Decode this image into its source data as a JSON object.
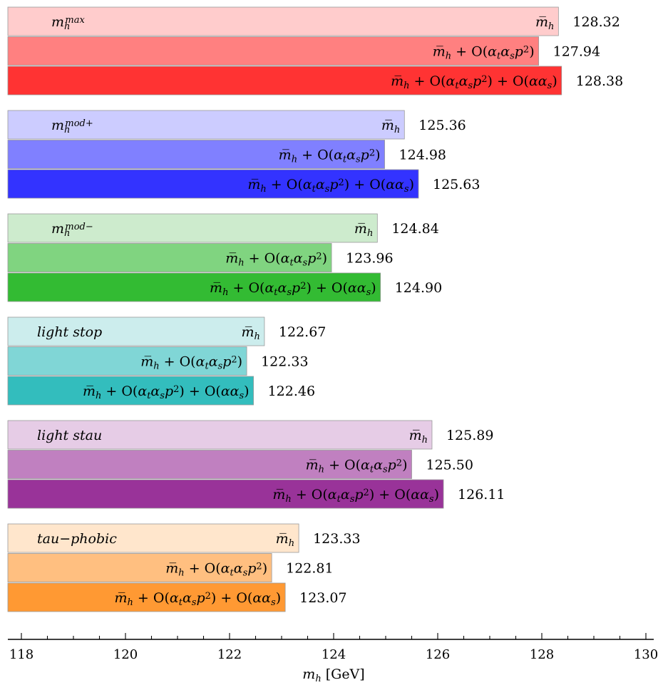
{
  "chart_data": {
    "type": "bar",
    "orientation": "horizontal",
    "xlabel": "m_h [GeV]",
    "xlim": [
      117.7,
      130.3
    ],
    "xticks": [
      118,
      120,
      122,
      124,
      126,
      128,
      130
    ],
    "minor_tick_step": 0.5,
    "grid": false,
    "legend": "none",
    "groups": [
      {
        "name": "m_h^max",
        "name_style": "math",
        "colors": [
          "#ffcccc",
          "#ff8080",
          "#ff3333"
        ],
        "bars": [
          {
            "label": "m̅_h",
            "value": 128.32
          },
          {
            "label": "m̅_h + O(α_tα_sp²)",
            "value": 127.94
          },
          {
            "label": "m̅_h + O(α_tα_sp²) + O(αα_s)",
            "value": 128.38
          }
        ]
      },
      {
        "name": "m_h^mod+",
        "name_style": "math",
        "colors": [
          "#ccccff",
          "#8080ff",
          "#3333ff"
        ],
        "bars": [
          {
            "label": "m̅_h",
            "value": 125.36
          },
          {
            "label": "m̅_h + O(α_tα_sp²)",
            "value": 124.98
          },
          {
            "label": "m̅_h + O(α_tα_sp²) + O(αα_s)",
            "value": 125.63
          }
        ]
      },
      {
        "name": "m_h^mod−",
        "name_style": "math",
        "colors": [
          "#cdebcd",
          "#80d480",
          "#33bb33"
        ],
        "bars": [
          {
            "label": "m̅_h",
            "value": 124.84
          },
          {
            "label": "m̅_h + O(α_tα_sp²)",
            "value": 123.96
          },
          {
            "label": "m̅_h + O(α_tα_sp²) + O(αα_s)",
            "value": 124.9
          }
        ]
      },
      {
        "name": "light stop",
        "name_style": "italic",
        "colors": [
          "#cceded",
          "#80d6d6",
          "#33bdbd"
        ],
        "bars": [
          {
            "label": "m̅_h",
            "value": 122.67
          },
          {
            "label": "m̅_h + O(α_tα_sp²)",
            "value": 122.33
          },
          {
            "label": "m̅_h + O(α_tα_sp²) + O(αα_s)",
            "value": 122.46
          }
        ]
      },
      {
        "name": "light stau",
        "name_style": "italic",
        "colors": [
          "#e6cce6",
          "#c080c0",
          "#993399"
        ],
        "bars": [
          {
            "label": "m̅_h",
            "value": 125.89
          },
          {
            "label": "m̅_h + O(α_tα_sp²)",
            "value": 125.5
          },
          {
            "label": "m̅_h + O(α_tα_sp²) + O(αα_s)",
            "value": 126.11
          }
        ]
      },
      {
        "name": "tau−phobic",
        "name_style": "italic",
        "colors": [
          "#ffe6cc",
          "#ffbf80",
          "#ff9933"
        ],
        "bars": [
          {
            "label": "m̅_h",
            "value": 123.33
          },
          {
            "label": "m̅_h + O(α_tα_sp²)",
            "value": 122.81
          },
          {
            "label": "m̅_h + O(α_tα_sp²) + O(αα_s)",
            "value": 123.07
          }
        ]
      }
    ]
  }
}
